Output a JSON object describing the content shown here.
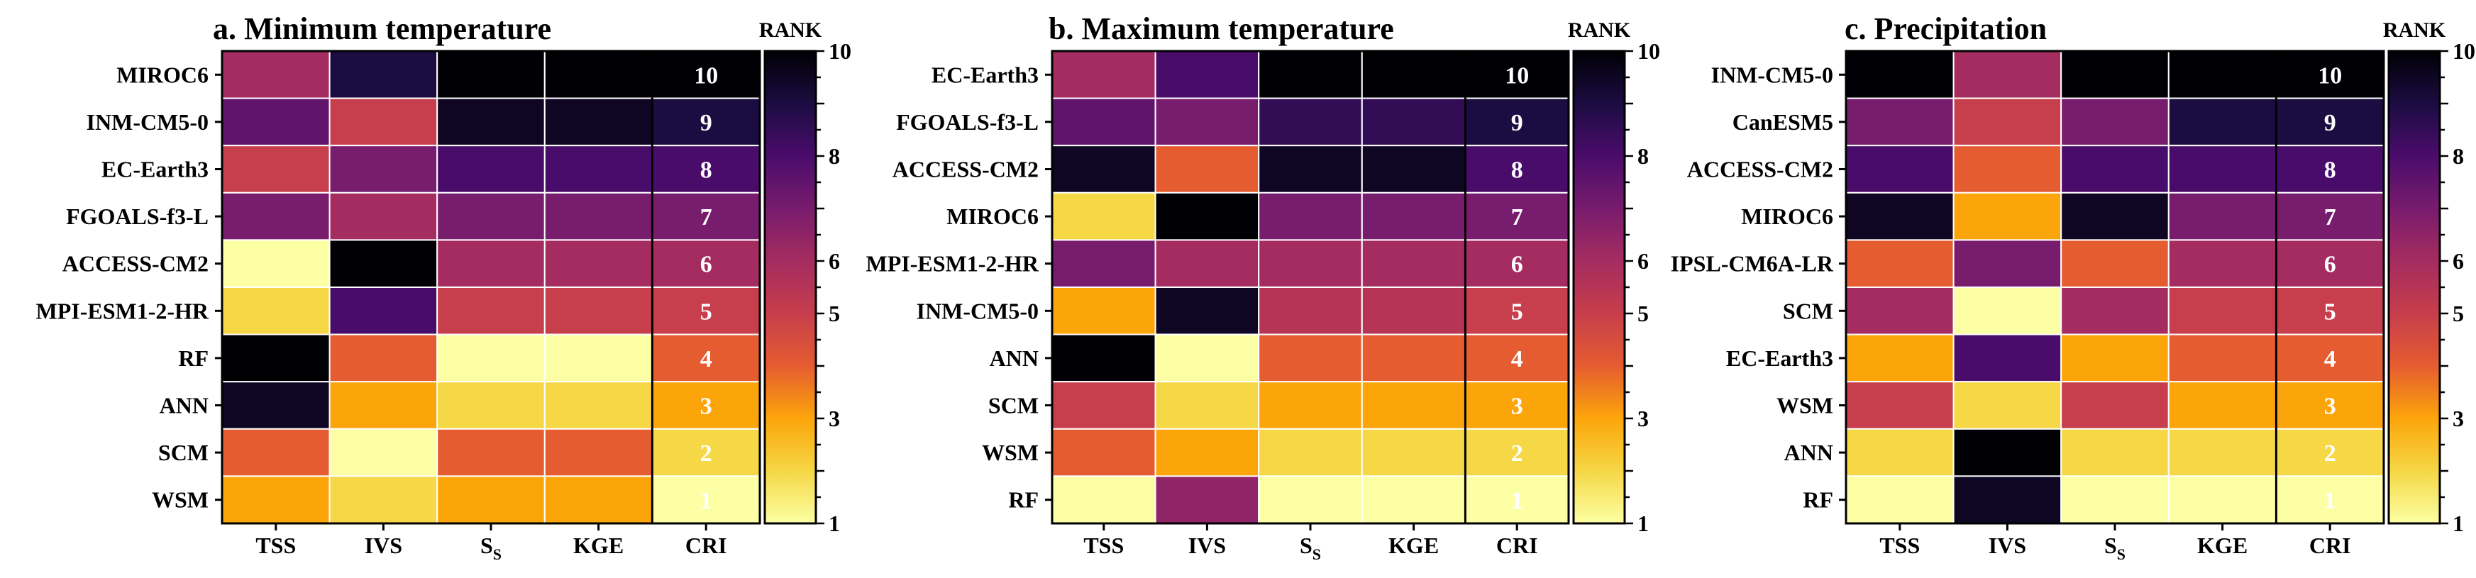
{
  "rank_label": "RANK",
  "colorbar_ticks": [
    1,
    3,
    5,
    6,
    8,
    10
  ],
  "colormap": [
    "#fcffa4",
    "#f6d746",
    "#fca50a",
    "#e55c30",
    "#c73e4c",
    "#a52c60",
    "#781c6d",
    "#4a0c6b",
    "#1b0c41",
    "#000004"
  ],
  "columns": [
    "TSS",
    "IVS",
    "S",
    "KGE",
    "CRI"
  ],
  "columns_subscript": [
    "",
    "",
    "S",
    "",
    ""
  ],
  "chart_data": [
    {
      "type": "heatmap",
      "title": "a. Minimum temperature",
      "rows": [
        "MIROC6",
        "INM-CM5-0",
        "EC-Earth3",
        "FGOALS-f3-L",
        "ACCESS-CM2",
        "MPI-ESM1-2-HR",
        "RF",
        "ANN",
        "SCM",
        "WSM"
      ],
      "values": [
        [
          6,
          9,
          10,
          10,
          10
        ],
        [
          7.5,
          5,
          9.5,
          9.5,
          9
        ],
        [
          5,
          7,
          8,
          8,
          8
        ],
        [
          7,
          6,
          7,
          7,
          7
        ],
        [
          1,
          10,
          6,
          6,
          6
        ],
        [
          2,
          8,
          5,
          5,
          5
        ],
        [
          10,
          4,
          1,
          1,
          4
        ],
        [
          9.5,
          3,
          2,
          2,
          3
        ],
        [
          4,
          1,
          4,
          4,
          2
        ],
        [
          3,
          2,
          3,
          3,
          1
        ]
      ],
      "cri_labels": [
        "10",
        "9",
        "8",
        "7",
        "6",
        "5",
        "4",
        "3",
        "2",
        "1"
      ],
      "colorbar_range": [
        1,
        10
      ]
    },
    {
      "type": "heatmap",
      "title": "b. Maximum temperature",
      "rows": [
        "EC-Earth3",
        "FGOALS-f3-L",
        "ACCESS-CM2",
        "MIROC6",
        "MPI-ESM1-2-HR",
        "INM-CM5-0",
        "ANN",
        "SCM",
        "WSM",
        "RF"
      ],
      "values": [
        [
          6,
          8,
          10,
          10,
          10
        ],
        [
          7.5,
          7,
          8.5,
          8.5,
          9
        ],
        [
          9.5,
          4,
          9.5,
          9.5,
          8
        ],
        [
          2,
          10,
          7,
          7,
          7
        ],
        [
          7,
          6,
          6,
          6,
          6
        ],
        [
          3,
          9.5,
          5.5,
          5.5,
          5
        ],
        [
          10,
          1,
          4,
          4,
          4
        ],
        [
          5,
          2,
          3,
          3,
          3
        ],
        [
          4,
          3,
          2,
          2,
          2
        ],
        [
          1,
          6.5,
          1,
          1,
          1
        ]
      ],
      "cri_labels": [
        "10",
        "9",
        "8",
        "7",
        "6",
        "5",
        "4",
        "3",
        "2",
        "1"
      ],
      "colorbar_range": [
        1,
        10
      ]
    },
    {
      "type": "heatmap",
      "title": "c. Precipitation",
      "rows": [
        "INM-CM5-0",
        "CanESM5",
        "ACCESS-CM2",
        "MIROC6",
        "IPSL-CM6A-LR",
        "SCM",
        "EC-Earth3",
        "WSM",
        "ANN",
        "RF"
      ],
      "values": [
        [
          10,
          6,
          10,
          10,
          10
        ],
        [
          7,
          5,
          7,
          9,
          9
        ],
        [
          8,
          4,
          8,
          8,
          8
        ],
        [
          9.5,
          3,
          9.5,
          7,
          7
        ],
        [
          4,
          7,
          4,
          6,
          6
        ],
        [
          6,
          1,
          6,
          5,
          5
        ],
        [
          3,
          8,
          3,
          4,
          4
        ],
        [
          5,
          2,
          5,
          3,
          3
        ],
        [
          2,
          10,
          2,
          2,
          2
        ],
        [
          1,
          9.5,
          1,
          1,
          1
        ]
      ],
      "cri_labels": [
        "10",
        "9",
        "8",
        "7",
        "6",
        "5",
        "4",
        "3",
        "2",
        "1"
      ],
      "colorbar_range": [
        1,
        10
      ]
    }
  ]
}
